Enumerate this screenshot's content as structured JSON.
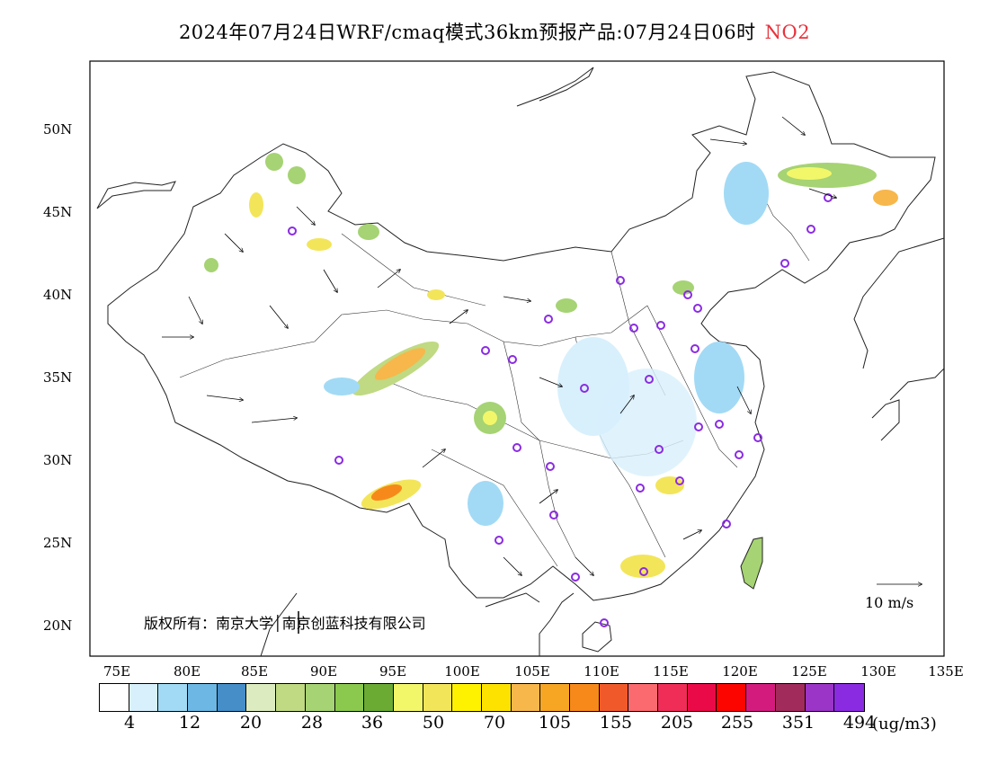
{
  "title": {
    "main": "2024年07月24日WRF/cmaq模式36km预报产品:07月24日06时",
    "species": "NO2"
  },
  "map": {
    "lat_ticks": [
      "50N",
      "45N",
      "40N",
      "35N",
      "30N",
      "25N",
      "20N"
    ],
    "lon_ticks": [
      "75E",
      "80E",
      "85E",
      "90E",
      "95E",
      "100E",
      "105E",
      "110E",
      "115E",
      "120E",
      "125E",
      "130E",
      "135E"
    ],
    "copyright": "版权所有：南京大学│南京创蓝科技有限公司",
    "wind_scale_label": "10 m/s"
  },
  "colorbar": {
    "colors": [
      "#ffffff",
      "#d8f0fc",
      "#a2daf5",
      "#6cb7e4",
      "#468ec8",
      "#dcecc0",
      "#bfda82",
      "#a6d373",
      "#8bc94e",
      "#6bab34",
      "#f2f76a",
      "#f3e55a",
      "#fff200",
      "#fde200",
      "#f7b74b",
      "#f6a623",
      "#f7891b",
      "#f05a2b",
      "#fb6a6e",
      "#f02d57",
      "#ea0a47",
      "#fc0400",
      "#d31b7e",
      "#a12b5a",
      "#9b35c7",
      "#8a2be2"
    ],
    "labels": [
      "4",
      "12",
      "20",
      "28",
      "36",
      "50",
      "70",
      "105",
      "155",
      "205",
      "255",
      "351",
      "494"
    ],
    "unit": "(ug/m3)"
  }
}
